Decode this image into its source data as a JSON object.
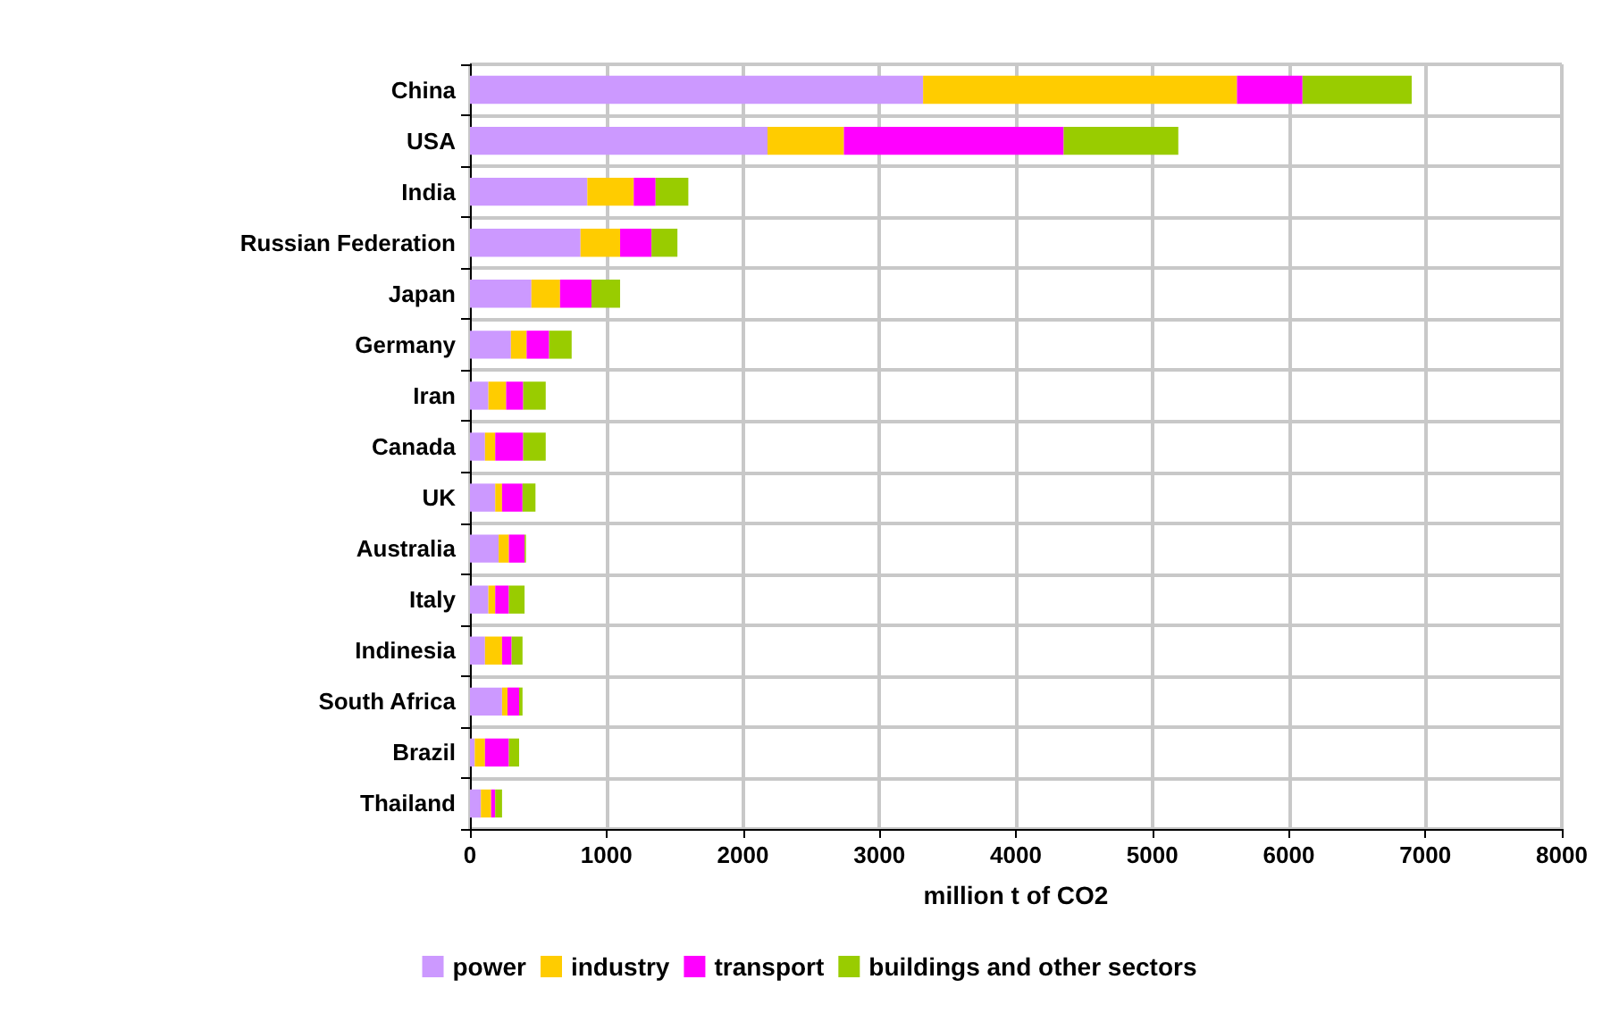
{
  "chart_data": {
    "type": "bar",
    "orientation": "horizontal",
    "stacked": true,
    "xlabel": "million t of CO2",
    "categories": [
      "China",
      "USA",
      "India",
      "Russian Federation",
      "Japan",
      "Germany",
      "Iran",
      "Canada",
      "UK",
      "Australia",
      "Italy",
      "Indinesia",
      "South Africa",
      "Brazil",
      "Thailand"
    ],
    "series": [
      {
        "name": "power",
        "color": "#cc99ff",
        "values": [
          3320,
          2180,
          860,
          810,
          450,
          300,
          135,
          110,
          185,
          210,
          135,
          110,
          235,
          35,
          80
        ]
      },
      {
        "name": "industry",
        "color": "#ffcc00",
        "values": [
          2300,
          560,
          340,
          290,
          210,
          115,
          130,
          75,
          50,
          75,
          50,
          125,
          40,
          75,
          75
        ]
      },
      {
        "name": "transport",
        "color": "#ff00ff",
        "values": [
          480,
          1610,
          160,
          230,
          230,
          165,
          125,
          205,
          150,
          115,
          100,
          70,
          85,
          175,
          30
        ]
      },
      {
        "name": "buildings and other sectors",
        "color": "#99cc00",
        "values": [
          800,
          840,
          240,
          190,
          210,
          165,
          165,
          165,
          95,
          10,
          115,
          80,
          25,
          75,
          50
        ]
      }
    ],
    "xlim": [
      0,
      8000
    ],
    "xticks": [
      0,
      1000,
      2000,
      3000,
      4000,
      5000,
      6000,
      7000,
      8000
    ],
    "grid": true,
    "legend": "bottom"
  }
}
